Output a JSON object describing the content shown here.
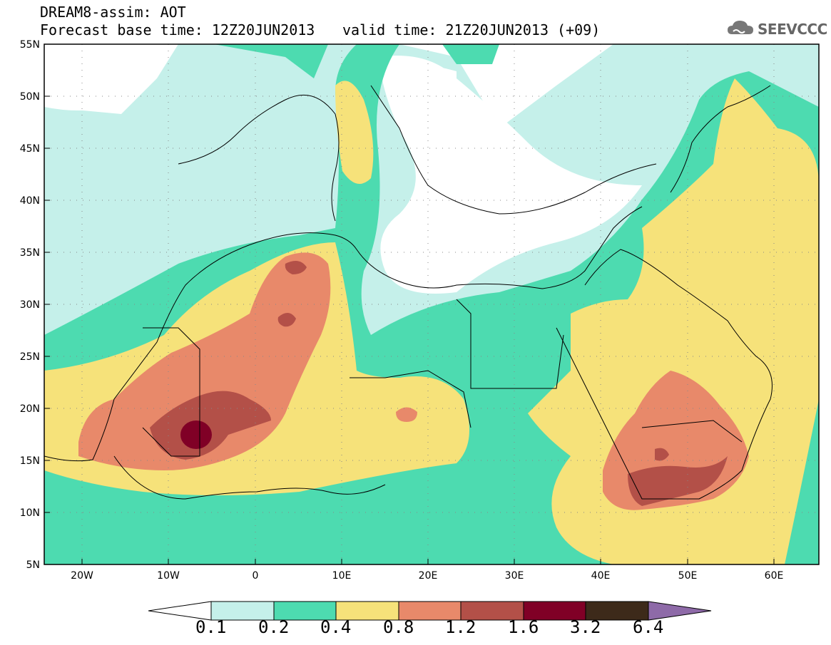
{
  "header": {
    "title_line1": "DREAM8-assim: AOT",
    "title_line2": "Forecast base time: 12Z20JUN2013",
    "valid_time": "valid time: 21Z20JUN2013 (+09)",
    "logo_text": "SEEVCCC",
    "logo_icon": "cloud-icon"
  },
  "map": {
    "lat_labels": [
      "55N",
      "50N",
      "45N",
      "40N",
      "35N",
      "30N",
      "25N",
      "20N",
      "15N",
      "10N",
      "5N"
    ],
    "lon_labels": [
      "20W",
      "10W",
      "0",
      "10E",
      "20E",
      "30E",
      "40E",
      "50E",
      "60E"
    ],
    "lat_range": [
      5,
      55
    ],
    "lon_range": [
      -25,
      65
    ],
    "grid": "dotted"
  },
  "colorbar": {
    "levels": [
      "0.1",
      "0.2",
      "0.4",
      "0.8",
      "1.2",
      "1.6",
      "3.2",
      "6.4"
    ],
    "colors": [
      "#ffffff",
      "#c5f0ea",
      "#4ddbb0",
      "#f6e27a",
      "#e8896a",
      "#b35048",
      "#800026",
      "#3d2a1a",
      "#8e6aa8"
    ]
  }
}
